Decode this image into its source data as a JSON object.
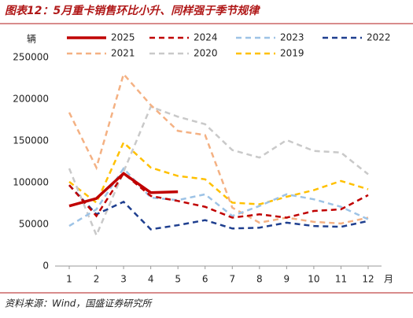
{
  "chart_data": {
    "type": "line",
    "title": "图表12：5月重卡销售环比小升、同样强于季节规律",
    "source": "资料来源：Wind，国盛证券研究所",
    "y_unit": "辆",
    "x_unit": "月",
    "x": [
      1,
      2,
      3,
      4,
      5,
      6,
      7,
      8,
      9,
      10,
      11,
      12
    ],
    "xlim": [
      1,
      12
    ],
    "xticks": [
      1,
      2,
      3,
      4,
      5,
      6,
      7,
      8,
      9,
      10,
      11,
      12
    ],
    "ylim": [
      0,
      250000
    ],
    "yticks": [
      0,
      50000,
      100000,
      150000,
      200000,
      250000
    ],
    "series": [
      {
        "name": "2025",
        "color": "#c00000",
        "dashed": false,
        "values": [
          72000,
          81000,
          111000,
          88000,
          89000,
          null,
          null,
          null,
          null,
          null,
          null,
          null
        ]
      },
      {
        "name": "2024",
        "color": "#c00000",
        "dashed": true,
        "values": [
          97000,
          60000,
          111000,
          84000,
          78000,
          71000,
          58000,
          62000,
          58000,
          66000,
          68000,
          85000
        ]
      },
      {
        "name": "2023",
        "color": "#9dc3e6",
        "dashed": true,
        "values": [
          48000,
          68000,
          117000,
          82000,
          79000,
          86000,
          60000,
          72000,
          86000,
          80000,
          71000,
          56000
        ]
      },
      {
        "name": "2022",
        "color": "#1f3f8f",
        "dashed": true,
        "values": [
          97000,
          62000,
          77000,
          44000,
          49000,
          55000,
          45000,
          46000,
          52000,
          48000,
          47000,
          54000
        ]
      },
      {
        "name": "2021",
        "color": "#f4b183",
        "dashed": true,
        "values": [
          184000,
          118000,
          230000,
          193000,
          162000,
          157000,
          70000,
          52000,
          58000,
          53000,
          51000,
          58000
        ]
      },
      {
        "name": "2020",
        "color": "#c9c9c9",
        "dashed": true,
        "values": [
          117000,
          37000,
          113000,
          191000,
          179000,
          170000,
          139000,
          130000,
          151000,
          138000,
          136000,
          110000
        ]
      },
      {
        "name": "2019",
        "color": "#ffc000",
        "dashed": true,
        "values": [
          101000,
          76000,
          148000,
          118000,
          108000,
          104000,
          76000,
          74000,
          83000,
          91000,
          102000,
          92000
        ]
      }
    ]
  }
}
